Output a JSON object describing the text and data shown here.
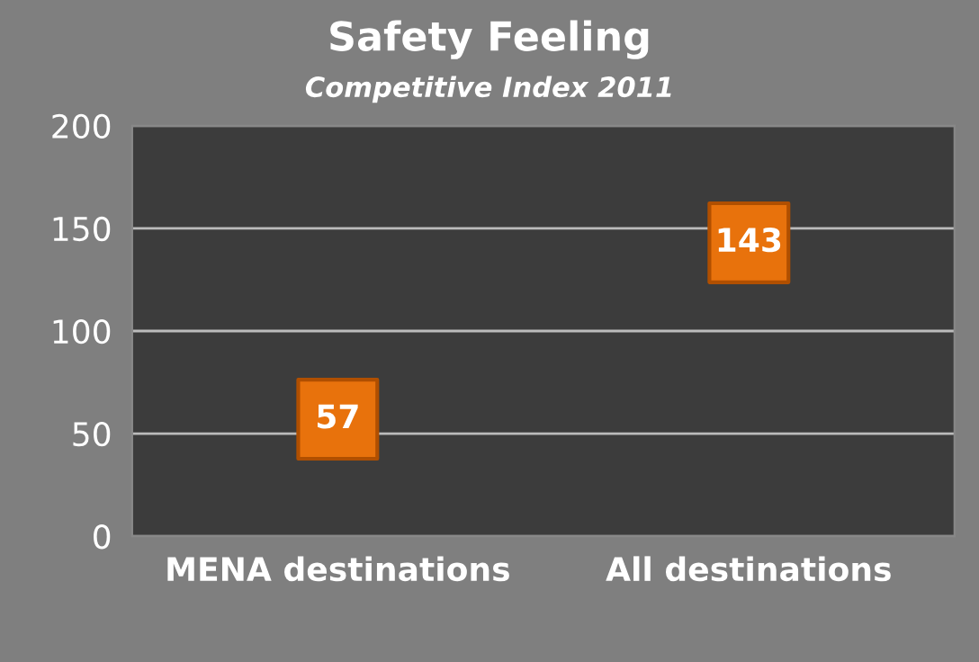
{
  "chart_data": {
    "type": "scatter",
    "title": "Safety Feeling",
    "subtitle": "Competitive Index 2011",
    "categories": [
      "MENA destinations",
      "All destinations"
    ],
    "series": [
      {
        "color": "#e8720c",
        "values": [
          57,
          143
        ]
      }
    ],
    "ylim": [
      0,
      200
    ],
    "yticks": [
      0,
      50,
      100,
      150,
      200
    ],
    "grid": "y",
    "marker": "square",
    "data_labels": true
  }
}
